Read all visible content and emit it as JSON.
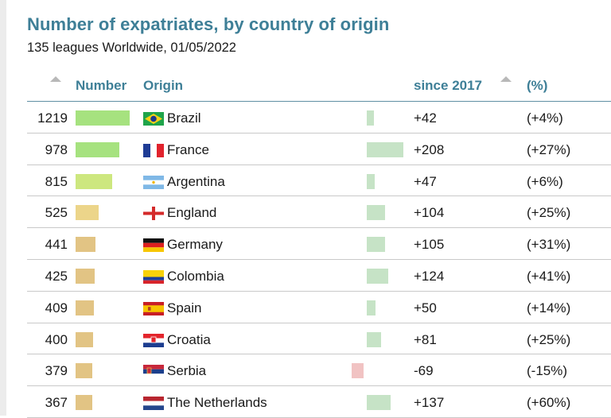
{
  "title": "Number of expatriates, by country of origin",
  "subtitle": "135 leagues Worldwide, 01/05/2022",
  "columns": {
    "number": "Number",
    "origin": "Origin",
    "since": "since 2017",
    "pct": "(%)"
  },
  "colors": {
    "title": "#3e7f97",
    "bar_high": "#a6e27f",
    "bar_mid": "#cde77f",
    "bar_yellow": "#ecd58a",
    "bar_tan": "#e2c484",
    "change_pos": "#c6e3c6",
    "change_neg": "#f1c3c3"
  },
  "chart_data": {
    "type": "table",
    "title": "Number of expatriates, by country of origin",
    "subtitle": "135 leagues Worldwide, 01/05/2022",
    "columns": [
      "Number",
      "Origin",
      "since 2017",
      "(%)"
    ],
    "rows": [
      {
        "number": 1219,
        "number_label": "1219",
        "country": "Brazil",
        "flag": "brazil-flag",
        "change": 42,
        "change_label": "+42",
        "pct_label": "(+4%)",
        "bar_color": "#a6e27f"
      },
      {
        "number": 978,
        "number_label": "978",
        "country": "France",
        "flag": "france-flag",
        "change": 208,
        "change_label": "+208",
        "pct_label": "(+27%)",
        "bar_color": "#a6e27f"
      },
      {
        "number": 815,
        "number_label": "815",
        "country": "Argentina",
        "flag": "argentina-flag",
        "change": 47,
        "change_label": "+47",
        "pct_label": "(+6%)",
        "bar_color": "#cde77f"
      },
      {
        "number": 525,
        "number_label": "525",
        "country": "England",
        "flag": "england-flag",
        "change": 104,
        "change_label": "+104",
        "pct_label": "(+25%)",
        "bar_color": "#ecd58a"
      },
      {
        "number": 441,
        "number_label": "441",
        "country": "Germany",
        "flag": "germany-flag",
        "change": 105,
        "change_label": "+105",
        "pct_label": "(+31%)",
        "bar_color": "#e2c484"
      },
      {
        "number": 425,
        "number_label": "425",
        "country": "Colombia",
        "flag": "colombia-flag",
        "change": 124,
        "change_label": "+124",
        "pct_label": "(+41%)",
        "bar_color": "#e2c484"
      },
      {
        "number": 409,
        "number_label": "409",
        "country": "Spain",
        "flag": "spain-flag",
        "change": 50,
        "change_label": "+50",
        "pct_label": "(+14%)",
        "bar_color": "#e2c484"
      },
      {
        "number": 400,
        "number_label": "400",
        "country": "Croatia",
        "flag": "croatia-flag",
        "change": 81,
        "change_label": "+81",
        "pct_label": "(+25%)",
        "bar_color": "#e2c484"
      },
      {
        "number": 379,
        "number_label": "379",
        "country": "Serbia",
        "flag": "serbia-flag",
        "change": -69,
        "change_label": "-69",
        "pct_label": "(-15%)",
        "bar_color": "#e2c484"
      },
      {
        "number": 367,
        "number_label": "367",
        "country": "The Netherlands",
        "flag": "netherlands-flag",
        "change": 137,
        "change_label": "+137",
        "pct_label": "(+60%)",
        "bar_color": "#e2c484"
      }
    ],
    "number_max": 1219,
    "change_max": 208
  }
}
